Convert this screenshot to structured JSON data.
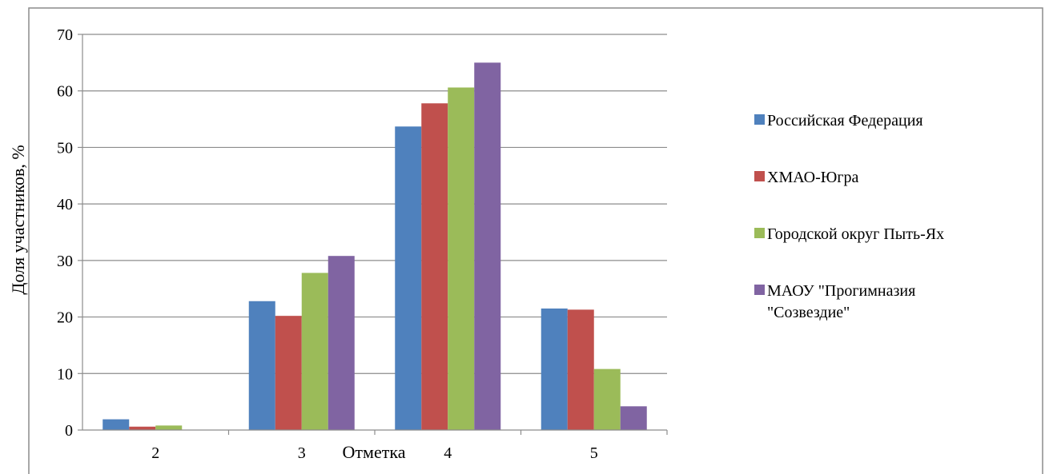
{
  "chart_data": {
    "type": "bar",
    "title": "",
    "xlabel": "Отметка",
    "ylabel": "Доля участников, %",
    "categories": [
      "2",
      "3",
      "4",
      "5"
    ],
    "ylim": [
      0,
      70
    ],
    "yticks": [
      "0",
      "10",
      "20",
      "30",
      "40",
      "50",
      "60",
      "70"
    ],
    "grid": true,
    "legend": "right",
    "series": [
      {
        "name": "Российская Федерация",
        "color": "#4F81BD",
        "values": [
          1.9,
          22.8,
          53.7,
          21.5
        ]
      },
      {
        "name": "ХМАО-Югра",
        "color": "#C0504D",
        "values": [
          0.6,
          20.2,
          57.8,
          21.3
        ]
      },
      {
        "name": "Городской округ Пыть-Ях",
        "color": "#9BBB59",
        "values": [
          0.8,
          27.8,
          60.6,
          10.8
        ]
      },
      {
        "name": "МАОУ \"Прогимназия \"Созвездие\"",
        "legend_lines": [
          "МАОУ \"Прогимназия",
          "\"Созвездие\""
        ],
        "color": "#8064A2",
        "values": [
          0,
          30.8,
          65.0,
          4.2
        ]
      }
    ]
  }
}
